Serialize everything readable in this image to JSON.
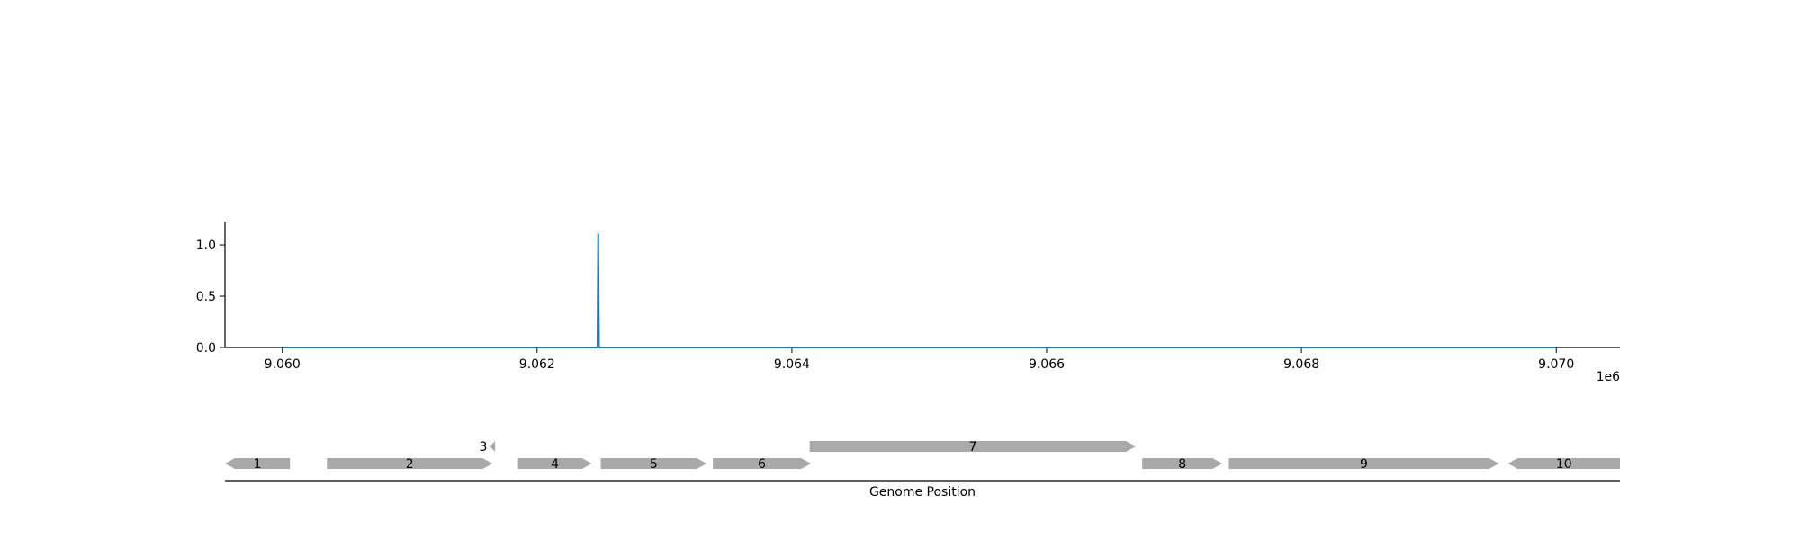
{
  "chart_data": [
    {
      "type": "line",
      "title": "",
      "xlabel": "",
      "ylabel": "",
      "x_offset_label": "1e6",
      "xlim": [
        9059550,
        9070500
      ],
      "ylim": [
        0,
        1.22
      ],
      "x_ticks": [
        9060000,
        9062000,
        9064000,
        9066000,
        9068000,
        9070000
      ],
      "x_tick_labels": [
        "9.060",
        "9.062",
        "9.064",
        "9.066",
        "9.068",
        "9.070"
      ],
      "y_ticks": [
        0.0,
        0.5,
        1.0
      ],
      "y_tick_labels": [
        "0.0",
        "0.5",
        "1.0"
      ],
      "grid": false,
      "series": [
        {
          "color": "#1f77b4",
          "x": [
            9060000,
            9062475,
            9062480,
            9062485,
            9070000
          ],
          "y": [
            0,
            0,
            1.11,
            0,
            0
          ]
        }
      ]
    },
    {
      "type": "gene_track",
      "xlabel": "Genome Position",
      "xlim": [
        9059550,
        9070500
      ],
      "gene_color": "#a9a9a9",
      "genes": [
        {
          "label": "1",
          "start": 9059550,
          "end": 9060060,
          "strand": "-",
          "row": 0
        },
        {
          "label": "2",
          "start": 9060350,
          "end": 9061650,
          "strand": "+",
          "row": 0
        },
        {
          "label": "3",
          "start": 9061630,
          "end": 9061670,
          "strand": "-",
          "row": 1
        },
        {
          "label": "4",
          "start": 9061850,
          "end": 9062430,
          "strand": "+",
          "row": 0
        },
        {
          "label": "5",
          "start": 9062500,
          "end": 9063330,
          "strand": "+",
          "row": 0
        },
        {
          "label": "6",
          "start": 9063380,
          "end": 9064150,
          "strand": "+",
          "row": 0
        },
        {
          "label": "7",
          "start": 9064140,
          "end": 9066700,
          "strand": "+",
          "row": 1
        },
        {
          "label": "8",
          "start": 9066750,
          "end": 9067380,
          "strand": "+",
          "row": 0
        },
        {
          "label": "9",
          "start": 9067430,
          "end": 9069550,
          "strand": "+",
          "row": 0
        },
        {
          "label": "10",
          "start": 9069620,
          "end": 9070500,
          "strand": "-",
          "row": 0
        }
      ]
    }
  ]
}
